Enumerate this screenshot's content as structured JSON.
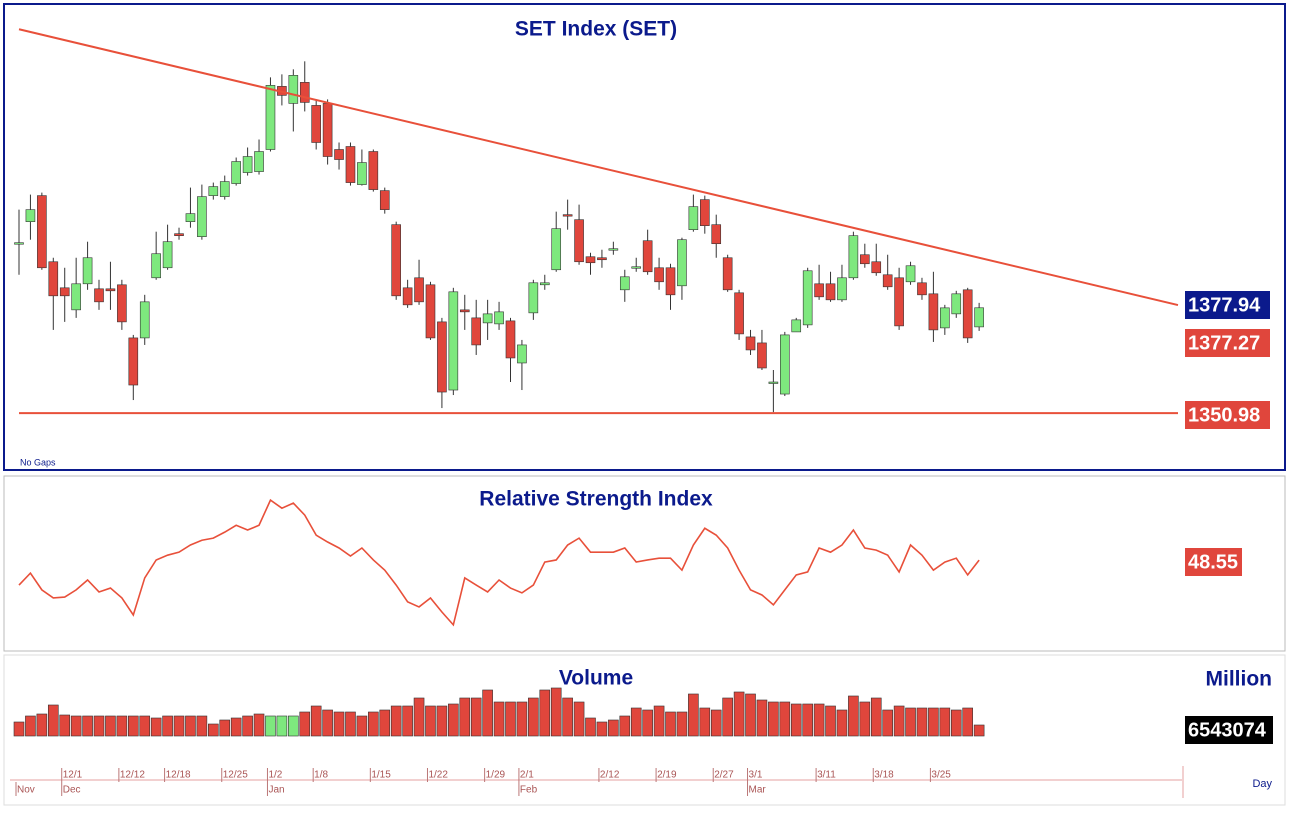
{
  "chart_data": [
    {
      "type": "candlestick",
      "title": "SET Index (SET)",
      "note": "No Gaps",
      "up_color": "#7ee87e",
      "down_color": "#e0463c",
      "ylim": [
        1336.8,
        1452.8
      ],
      "open": [
        1393.5,
        1398.75,
        1405.25,
        1388.75,
        1382.25,
        1376.75,
        1383.25,
        1382,
        1382,
        1383,
        1369.75,
        1369.75,
        1384.75,
        1387.25,
        1395.75,
        1398.75,
        1395,
        1405.25,
        1405,
        1408.25,
        1411,
        1411.25,
        1416.75,
        1432.5,
        1428.25,
        1433.5,
        1427.75,
        1428.25,
        1416.75,
        1417.5,
        1408,
        1416.25,
        1406.5,
        1398,
        1382.25,
        1384.75,
        1383,
        1373.75,
        1356.75,
        1376.75,
        1374.75,
        1373.5,
        1373.25,
        1374,
        1363.5,
        1376,
        1383,
        1386.75,
        1400.5,
        1399.25,
        1390,
        1389.75,
        1391.75,
        1381.75,
        1387.25,
        1394,
        1387.25,
        1387.25,
        1382.75,
        1396.75,
        1404.25,
        1398,
        1389.75,
        1381,
        1370,
        1368.5,
        1358.5,
        1355.75,
        1371.25,
        1373,
        1383.25,
        1383.25,
        1379.25,
        1384.75,
        1390.5,
        1388.75,
        1385.5,
        1384.75,
        1383.75,
        1383.5,
        1380.75,
        1372.25,
        1375.75,
        1381.75,
        1372.5
      ],
      "high": [
        1401.75,
        1405.5,
        1406,
        1389.75,
        1387.25,
        1389.75,
        1393.75,
        1384.25,
        1388.75,
        1384.25,
        1370.5,
        1380.5,
        1396.25,
        1398,
        1397.25,
        1407.25,
        1408,
        1408.5,
        1410.25,
        1414.75,
        1417.25,
        1419.25,
        1434.75,
        1435.5,
        1436.75,
        1438.75,
        1429.25,
        1429.25,
        1418.5,
        1418.5,
        1416.75,
        1416.75,
        1407.25,
        1398.75,
        1384.25,
        1389.25,
        1383.75,
        1374.75,
        1382.25,
        1380.5,
        1379.25,
        1379.25,
        1378.75,
        1374.75,
        1369.25,
        1384.25,
        1385.5,
        1401.25,
        1404.25,
        1403,
        1391,
        1391.75,
        1393.75,
        1386.75,
        1389.75,
        1396.75,
        1389.75,
        1388.25,
        1394.75,
        1405.5,
        1405.25,
        1400.5,
        1390.5,
        1381.75,
        1371.75,
        1371.75,
        1361.75,
        1371.25,
        1374.75,
        1387.25,
        1388,
        1386.25,
        1388,
        1396.25,
        1393.25,
        1393.25,
        1390.5,
        1387.25,
        1388.75,
        1384.75,
        1386.25,
        1378,
        1381.5,
        1382.25,
        1378.5
      ],
      "low": [
        1385.5,
        1394.25,
        1386.75,
        1371.75,
        1373.75,
        1374.75,
        1381.75,
        1376.75,
        1376.75,
        1371.75,
        1354.25,
        1368,
        1384.25,
        1386.75,
        1394.25,
        1397.25,
        1394.25,
        1404.25,
        1404.25,
        1407.75,
        1410.25,
        1410.5,
        1416.25,
        1427.75,
        1421.25,
        1426.25,
        1416.75,
        1413,
        1411.75,
        1407.75,
        1407.75,
        1406.25,
        1400.75,
        1379.25,
        1377.25,
        1378,
        1369.25,
        1352.25,
        1355.5,
        1371.75,
        1365.5,
        1369.25,
        1371.75,
        1358.75,
        1356.75,
        1374.25,
        1381.75,
        1386.25,
        1396.75,
        1388,
        1385.5,
        1387.25,
        1390.5,
        1378.75,
        1386.25,
        1385.5,
        1381.75,
        1376.75,
        1379.25,
        1396.25,
        1395.75,
        1389.75,
        1381.25,
        1369.25,
        1365.5,
        1361.75,
        1351.25,
        1355.25,
        1371.25,
        1372.25,
        1379.25,
        1378.75,
        1378.75,
        1384.25,
        1387.25,
        1385.25,
        1381.75,
        1371.75,
        1383,
        1379.25,
        1368.75,
        1370.5,
        1374.75,
        1368.5,
        1371.5
      ],
      "close": [
        1393.5,
        1401.75,
        1387.25,
        1380.25,
        1380.25,
        1383.25,
        1389.75,
        1378.75,
        1381.5,
        1373.75,
        1358,
        1378.75,
        1390.75,
        1393.75,
        1395.25,
        1400.75,
        1405,
        1407.5,
        1408.75,
        1413.75,
        1415,
        1416.25,
        1432.75,
        1430.25,
        1435.25,
        1428.5,
        1418.5,
        1415,
        1414.25,
        1408.5,
        1413.5,
        1406.75,
        1401.75,
        1380.25,
        1378,
        1378.75,
        1369.75,
        1356.25,
        1381.25,
        1376.25,
        1368,
        1375.75,
        1376.25,
        1364.75,
        1368,
        1383.5,
        1383.5,
        1397,
        1400.25,
        1388.75,
        1388.5,
        1389.25,
        1392,
        1385,
        1387.5,
        1386.25,
        1383.75,
        1380.5,
        1394.25,
        1402.5,
        1397.75,
        1393.25,
        1381.75,
        1370.75,
        1366.75,
        1362.25,
        1358.75,
        1370.5,
        1374.25,
        1386.5,
        1380,
        1379.25,
        1384.75,
        1395.25,
        1388.25,
        1386,
        1382.5,
        1372.75,
        1387.75,
        1380.5,
        1371.75,
        1377.25,
        1380.75,
        1369.75,
        1377.27
      ],
      "trendline": {
        "values": [
          1446.75,
          1377.94
        ],
        "color": "#e8503a"
      },
      "support": {
        "value": 1350.98,
        "color": "#e8503a"
      }
    },
    {
      "type": "line",
      "title": "Relative Strength Index",
      "color": "#e8503a",
      "ylim": [
        18.5,
        76
      ],
      "values": [
        40.2,
        44.2,
        38.6,
        35.9,
        36.2,
        38.6,
        41.9,
        37.9,
        39.2,
        35.9,
        30.2,
        42.6,
        48.6,
        50.2,
        51.2,
        53.6,
        55.2,
        55.9,
        57.9,
        60.2,
        58.6,
        60.2,
        68.6,
        65.9,
        67.6,
        63.6,
        56.9,
        54.6,
        52.6,
        49.9,
        52.6,
        48.6,
        45.2,
        40.2,
        34.6,
        32.9,
        35.9,
        31.2,
        26.9,
        42.6,
        40.2,
        37.9,
        41.9,
        39.2,
        37.6,
        40.2,
        47.9,
        48.6,
        53.6,
        55.9,
        51.2,
        51.2,
        51.2,
        52.6,
        47.9,
        48.6,
        49.2,
        49.2,
        45.2,
        53.6,
        59.2,
        56.9,
        52.6,
        45.2,
        38.6,
        36.9,
        33.6,
        38.6,
        43.6,
        44.6,
        52.6,
        51.2,
        53.6,
        58.6,
        52.6,
        51.9,
        50.2,
        44.6,
        53.6,
        50.2,
        45.2,
        47.9,
        49.2,
        43.6,
        48.55
      ]
    },
    {
      "type": "bar",
      "title": "Volume",
      "unit": "Million",
      "x_unit": "Day",
      "ylim": [
        0,
        46400000
      ],
      "values": [
        8330000,
        11900000,
        13090000,
        18445000,
        12495000,
        11900000,
        11900000,
        11900000,
        11900000,
        11900000,
        11900000,
        11900000,
        10710000,
        11900000,
        11900000,
        11900000,
        11900000,
        7140000,
        9520000,
        10710000,
        11900000,
        13090000,
        11900000,
        11900000,
        11900000,
        14280000,
        17850000,
        15470000,
        14280000,
        14280000,
        11900000,
        14280000,
        15470000,
        17850000,
        17850000,
        22610000,
        17850000,
        17850000,
        19040000,
        22610000,
        22610000,
        27370000,
        20230000,
        20230000,
        20230000,
        22610000,
        27370000,
        28560000,
        22610000,
        20230000,
        10710000,
        8330000,
        9520000,
        11900000,
        16660000,
        15470000,
        17850000,
        14280000,
        14280000,
        24990000,
        16660000,
        15470000,
        22610000,
        26180000,
        24990000,
        21420000,
        20230000,
        20230000,
        19040000,
        19040000,
        19040000,
        17850000,
        15470000,
        23800000,
        20230000,
        22610000,
        15470000,
        17850000,
        16660000,
        16660000,
        16660000,
        16660000,
        15470000,
        16660000,
        6543074
      ],
      "colors": [
        "#e0463c",
        "#e0463c",
        "#e0463c",
        "#e0463c",
        "#e0463c",
        "#e0463c",
        "#e0463c",
        "#e0463c",
        "#e0463c",
        "#e0463c",
        "#e0463c",
        "#e0463c",
        "#e0463c",
        "#e0463c",
        "#e0463c",
        "#e0463c",
        "#e0463c",
        "#e0463c",
        "#e0463c",
        "#e0463c",
        "#e0463c",
        "#e0463c",
        "#7ee87e",
        "#7ee87e",
        "#7ee87e",
        "#e0463c",
        "#e0463c",
        "#e0463c",
        "#e0463c",
        "#e0463c",
        "#e0463c",
        "#e0463c",
        "#e0463c",
        "#e0463c",
        "#e0463c",
        "#e0463c",
        "#e0463c",
        "#e0463c",
        "#e0463c",
        "#e0463c",
        "#e0463c",
        "#e0463c",
        "#e0463c",
        "#e0463c",
        "#e0463c",
        "#e0463c",
        "#e0463c",
        "#e0463c",
        "#e0463c",
        "#e0463c",
        "#e0463c",
        "#e0463c",
        "#e0463c",
        "#e0463c",
        "#e0463c",
        "#e0463c",
        "#e0463c",
        "#e0463c",
        "#e0463c",
        "#e0463c",
        "#e0463c",
        "#e0463c",
        "#e0463c",
        "#e0463c",
        "#e0463c",
        "#e0463c",
        "#e0463c",
        "#e0463c",
        "#e0463c",
        "#e0463c",
        "#e0463c",
        "#e0463c",
        "#e0463c",
        "#e0463c",
        "#e0463c",
        "#e0463c",
        "#e0463c",
        "#e0463c",
        "#e0463c",
        "#e0463c",
        "#e0463c",
        "#e0463c",
        "#e0463c",
        "#e0463c",
        "#e0463c"
      ],
      "categories": [
        null,
        null,
        null,
        null,
        "12/1",
        null,
        null,
        null,
        null,
        "12/12",
        null,
        null,
        null,
        "12/18",
        null,
        null,
        null,
        null,
        "12/25",
        null,
        null,
        null,
        "1/2",
        null,
        null,
        null,
        "1/8",
        null,
        null,
        null,
        null,
        "1/15",
        null,
        null,
        null,
        null,
        "1/22",
        null,
        null,
        null,
        null,
        "1/29",
        null,
        null,
        "2/1",
        null,
        null,
        null,
        null,
        null,
        null,
        "2/12",
        null,
        null,
        null,
        null,
        "2/19",
        null,
        null,
        null,
        null,
        "2/27",
        null,
        null,
        "3/1",
        null,
        null,
        null,
        null,
        null,
        "3/11",
        null,
        null,
        null,
        null,
        "3/18",
        null,
        null,
        null,
        null,
        "3/25",
        null,
        null,
        null,
        null
      ],
      "month_labels": [
        "Nov",
        null,
        null,
        null,
        "Dec",
        null,
        null,
        null,
        null,
        null,
        null,
        null,
        null,
        null,
        null,
        null,
        null,
        null,
        null,
        null,
        null,
        null,
        "Jan",
        null,
        null,
        null,
        null,
        null,
        null,
        null,
        null,
        null,
        null,
        null,
        null,
        null,
        null,
        null,
        null,
        null,
        null,
        null,
        null,
        null,
        "Feb",
        null,
        null,
        null,
        null,
        null,
        null,
        null,
        null,
        null,
        null,
        null,
        null,
        null,
        null,
        null,
        null,
        null,
        null,
        null,
        "Mar",
        null,
        null,
        null,
        null,
        null,
        null,
        null,
        null,
        null,
        null,
        null,
        null,
        null,
        null,
        null,
        null,
        null,
        null,
        null,
        null
      ]
    }
  ]
}
